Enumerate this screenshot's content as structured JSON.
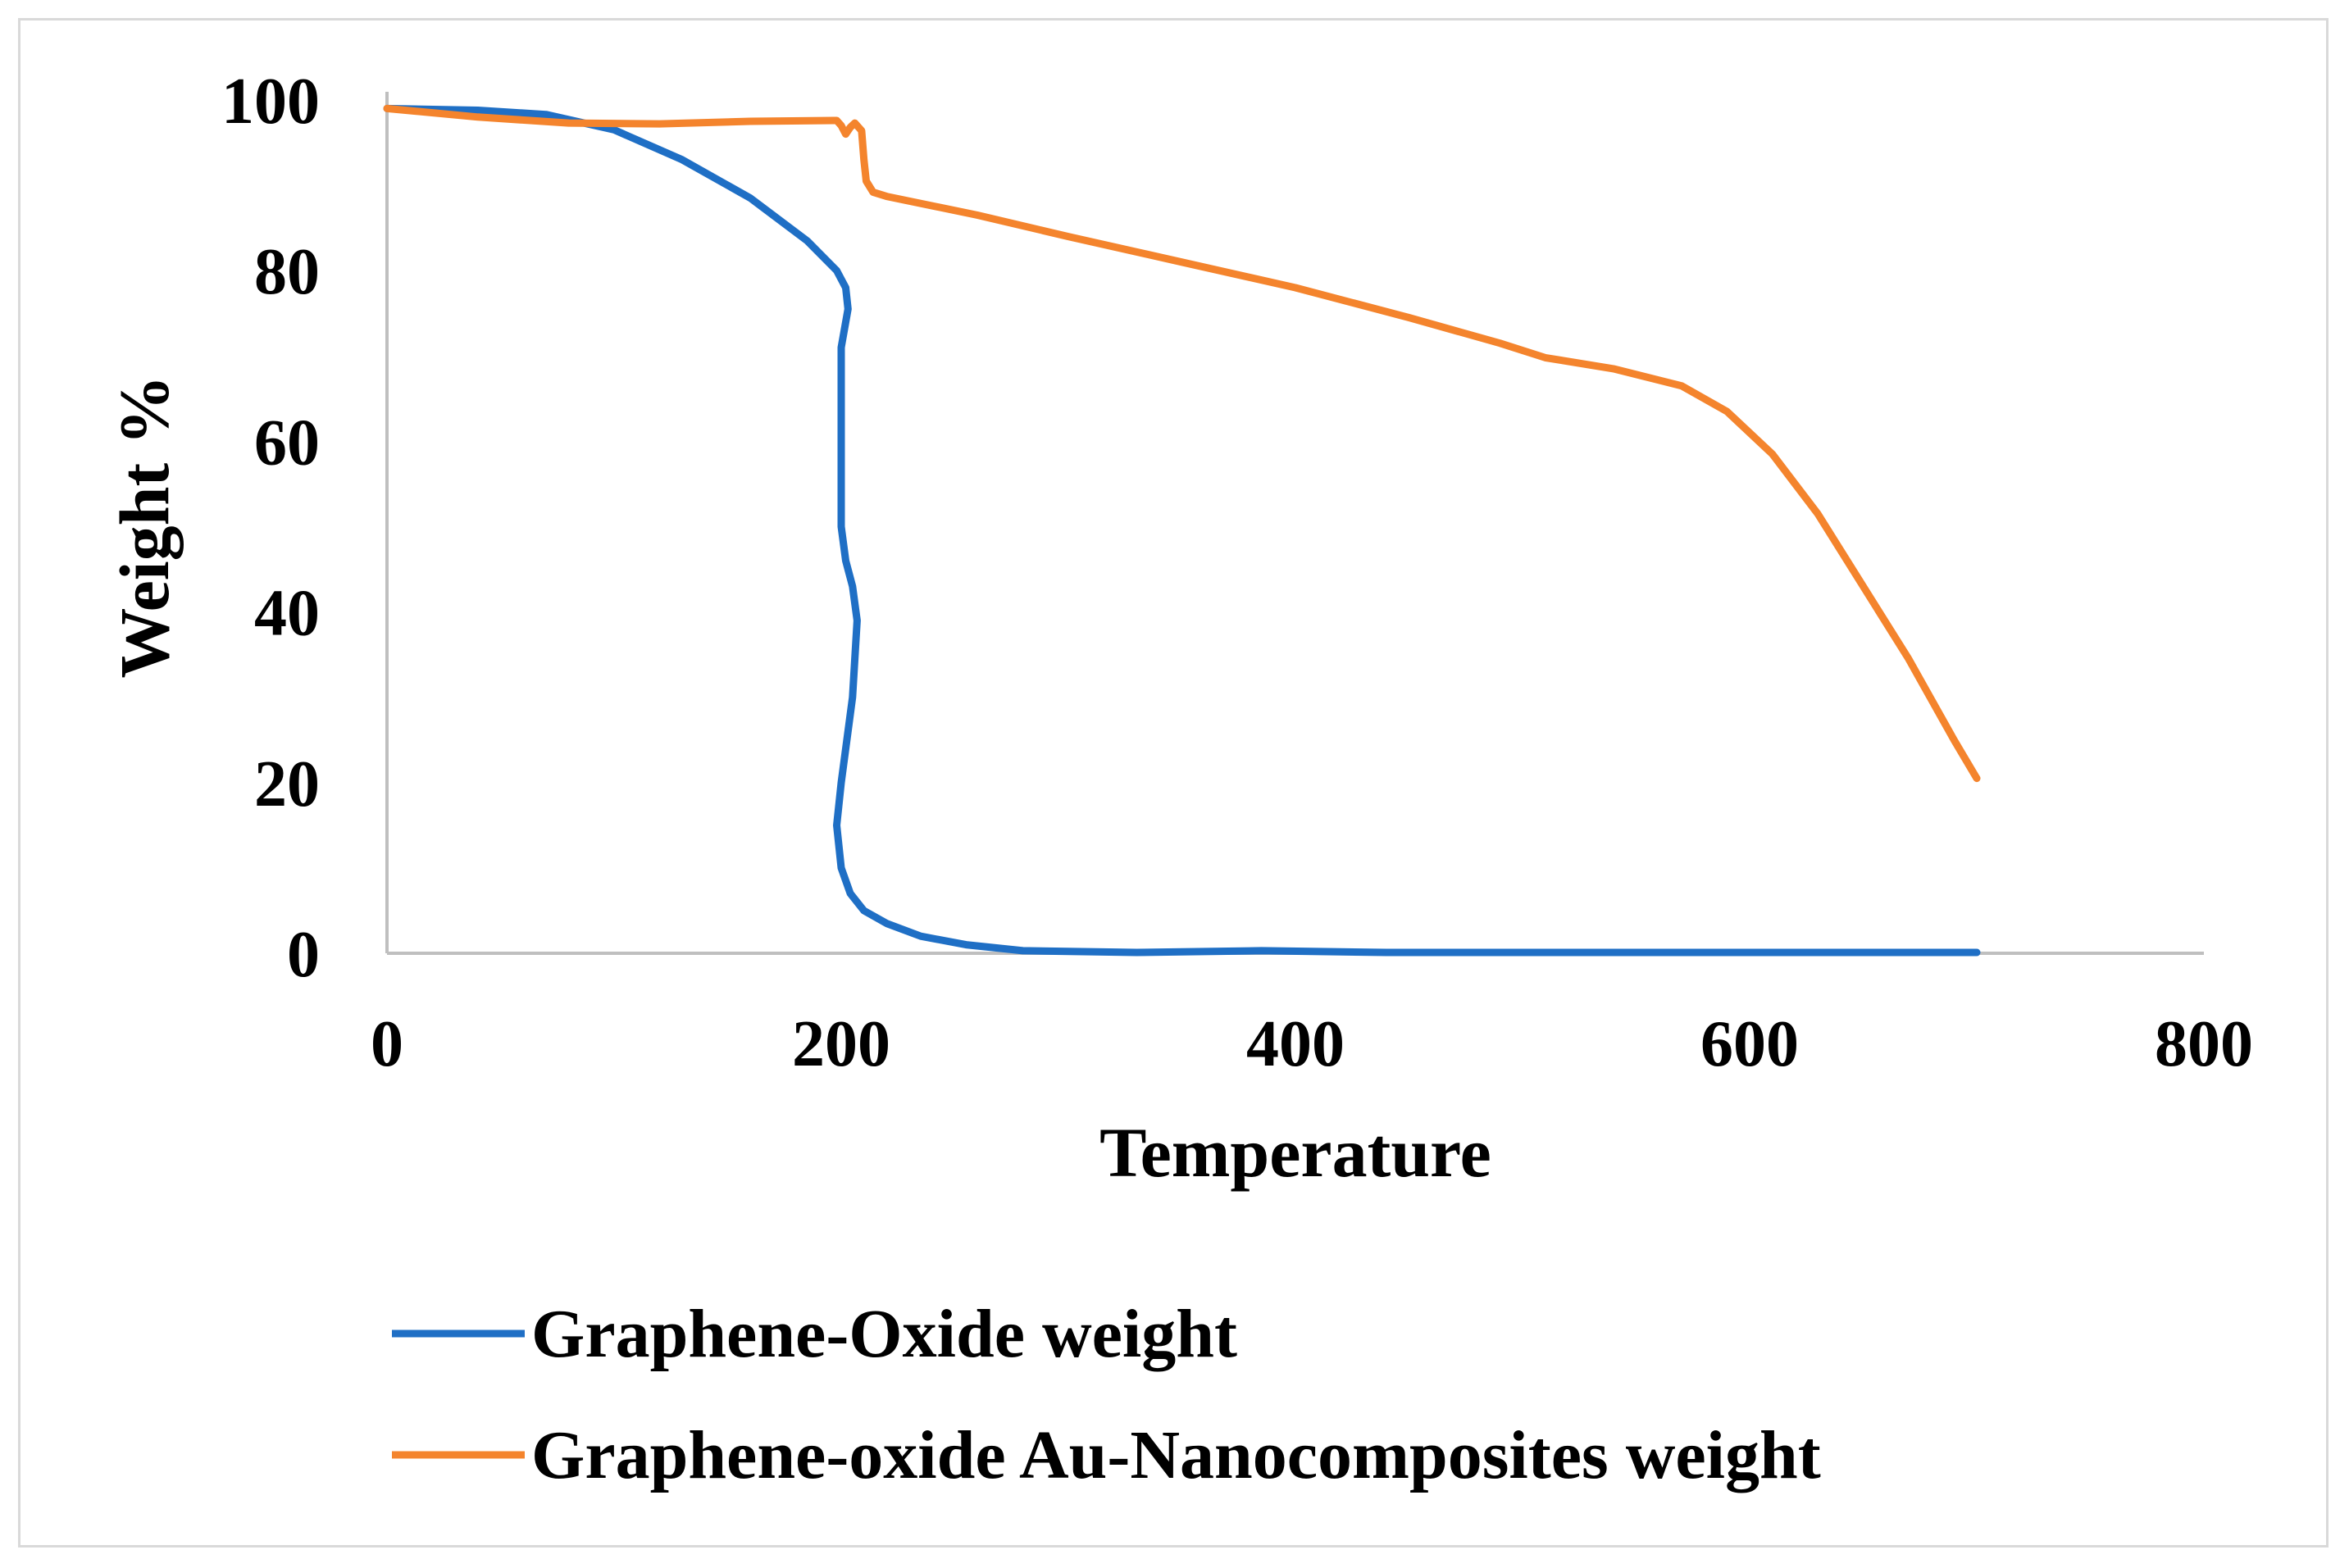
{
  "chart_data": {
    "type": "line",
    "title": "",
    "xlabel": "Temperature",
    "ylabel": "Weight %",
    "xlim": [
      0,
      800
    ],
    "ylim": [
      0,
      100
    ],
    "xticks": [
      "0",
      "200",
      "400",
      "600",
      "800"
    ],
    "yticks": [
      "0",
      "20",
      "40",
      "60",
      "80",
      "100"
    ],
    "grid": false,
    "legend": {
      "placement": "bottom",
      "orientation": "vertical"
    },
    "series": [
      {
        "name": "Graphene-Oxide weight",
        "color": "#1f6fc5",
        "points": [
          [
            0,
            99
          ],
          [
            40,
            98.8
          ],
          [
            70,
            98.3
          ],
          [
            100,
            96.5
          ],
          [
            130,
            93
          ],
          [
            160,
            88.5
          ],
          [
            185,
            83.5
          ],
          [
            198,
            80
          ],
          [
            202,
            78
          ],
          [
            203,
            75.5
          ],
          [
            200,
            71
          ],
          [
            200,
            60
          ],
          [
            200,
            50
          ],
          [
            202,
            46
          ],
          [
            205,
            43
          ],
          [
            207,
            39
          ],
          [
            205,
            30
          ],
          [
            200,
            20
          ],
          [
            198,
            15
          ],
          [
            200,
            10
          ],
          [
            204,
            7
          ],
          [
            210,
            5
          ],
          [
            220,
            3.5
          ],
          [
            235,
            2
          ],
          [
            255,
            1
          ],
          [
            280,
            0.3
          ],
          [
            330,
            0.1
          ],
          [
            385,
            0.3
          ],
          [
            440,
            0.1
          ],
          [
            500,
            0.1
          ],
          [
            700,
            0.1
          ]
        ]
      },
      {
        "name": "Graphene-oxide Au-Nanocomposites weight",
        "color": "#f4842d",
        "points": [
          [
            0,
            99
          ],
          [
            40,
            98
          ],
          [
            80,
            97.3
          ],
          [
            120,
            97.2
          ],
          [
            160,
            97.5
          ],
          [
            198,
            97.6
          ],
          [
            200,
            97
          ],
          [
            202,
            96
          ],
          [
            204,
            96.8
          ],
          [
            206,
            97.3
          ],
          [
            209,
            96.4
          ],
          [
            210,
            93
          ],
          [
            211,
            90.5
          ],
          [
            214,
            89.2
          ],
          [
            220,
            88.7
          ],
          [
            260,
            86.5
          ],
          [
            300,
            84
          ],
          [
            350,
            81
          ],
          [
            400,
            78
          ],
          [
            450,
            74.5
          ],
          [
            490,
            71.5
          ],
          [
            510,
            69.8
          ],
          [
            540,
            68.5
          ],
          [
            570,
            66.5
          ],
          [
            590,
            63.5
          ],
          [
            610,
            58.5
          ],
          [
            630,
            51.5
          ],
          [
            650,
            43
          ],
          [
            670,
            34.5
          ],
          [
            690,
            25
          ],
          [
            700,
            20.5
          ]
        ]
      }
    ]
  }
}
